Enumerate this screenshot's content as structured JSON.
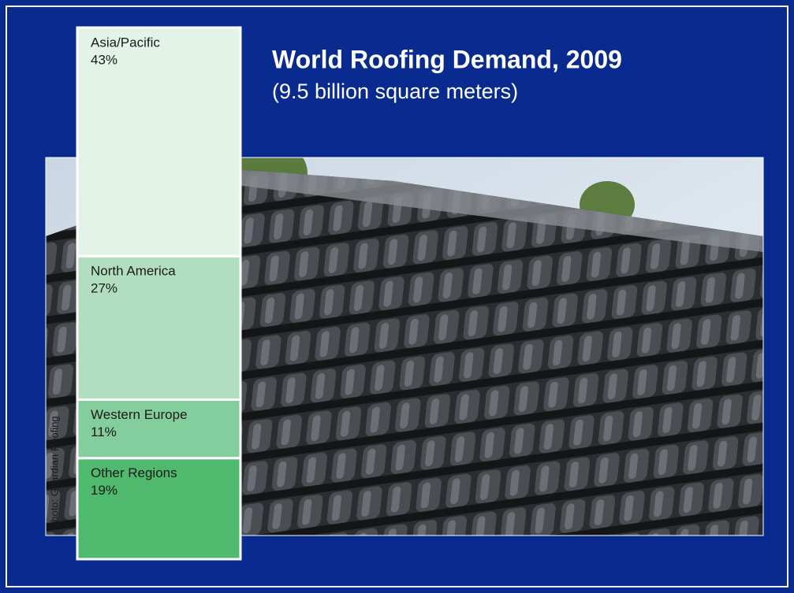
{
  "chart_data": {
    "type": "stacked-bar",
    "title": "World Roofing Demand, 2009",
    "subtitle": "(9.5 billion square meters)",
    "credit": "photo: Guardian Roofing",
    "categories": [
      "Asia/Pacific",
      "North America",
      "Western Europe",
      "Other Regions"
    ],
    "values": [
      43,
      27,
      11,
      19
    ],
    "value_labels": [
      "43%",
      "27%",
      "11%",
      "19%"
    ],
    "colors": [
      "#e4f3e8",
      "#b2dec0",
      "#84cd9c",
      "#4fba6e"
    ],
    "ylim": [
      0,
      100
    ]
  }
}
